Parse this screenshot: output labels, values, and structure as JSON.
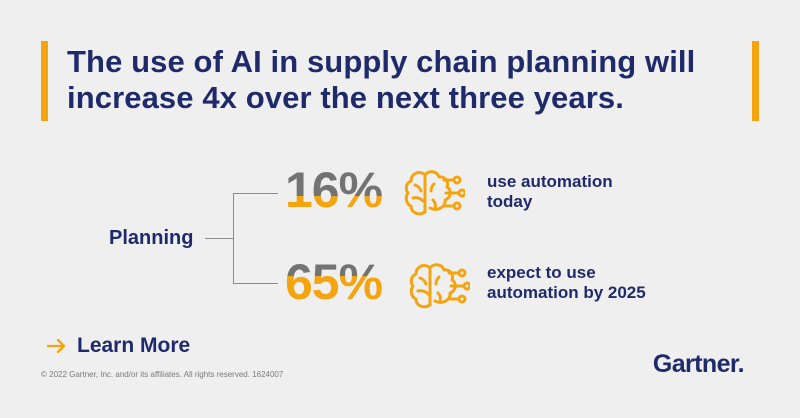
{
  "headline": "The use of AI in supply chain planning will increase 4x over the next three years.",
  "planning": "Planning",
  "stats": [
    {
      "value": "16%",
      "description": "use automation today",
      "fill_fraction": 0.38,
      "icon": "brain-circuit-icon"
    },
    {
      "value": "65%",
      "description": "expect to use automation by 2025",
      "fill_fraction": 0.62,
      "icon": "brain-circuit-icon"
    }
  ],
  "cta": {
    "label": "Learn More",
    "icon": "arrow-right-icon"
  },
  "footer": {
    "copyright": "© 2022 Gartner, Inc. and/or its affiliates. All rights reserved. 1624007",
    "logo_text": "Gartner",
    "logo_dot": "."
  },
  "colors": {
    "background": "#efefef",
    "navy": "#1f2a6b",
    "accent": "#f4a40f",
    "gray": "#737373"
  }
}
